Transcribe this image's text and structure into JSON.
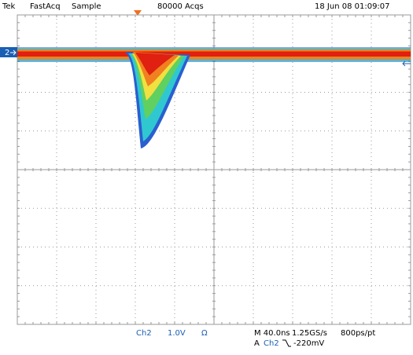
{
  "header": {
    "brand": "Tek",
    "mode": "FastAcq",
    "acquisition": "Sample",
    "acqs": "80000 Acqs",
    "timestamp": "18 Jun 08 01:09:07"
  },
  "channel_marker": "2",
  "footer": {
    "channel": "Ch2",
    "scale": "1.0V",
    "coupling": "Ω",
    "timebase": "M 40.0ns",
    "sample_rate": "1.25GS/s",
    "resolution": "800ps/pt",
    "trigger_label": "A",
    "trigger_source": "Ch2",
    "trigger_level": "-220mV"
  }
}
